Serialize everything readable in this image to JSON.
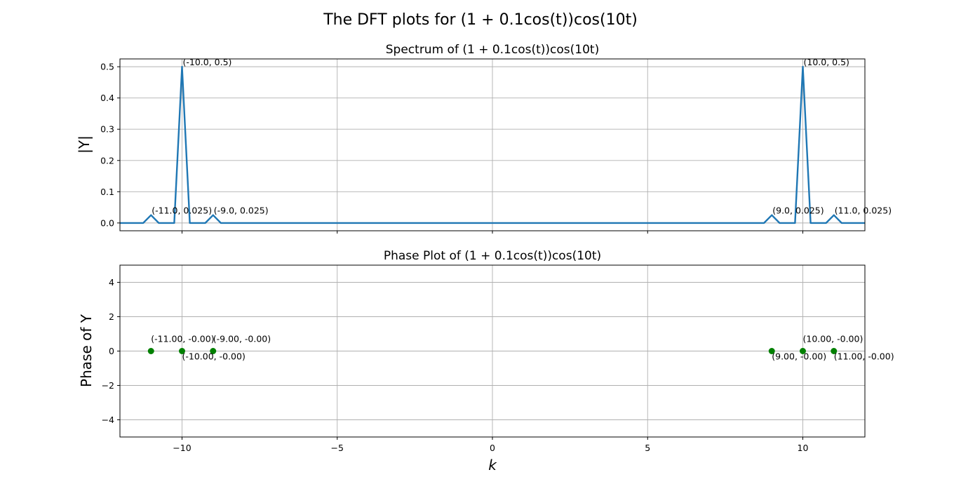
{
  "figure": {
    "suptitle": "The DFT plots for (1 + 0.1cos(t))cos(10t)"
  },
  "chart_data": [
    {
      "type": "line",
      "title": "Spectrum of (1 + 0.1cos(t))cos(10t)",
      "xlabel": "",
      "ylabel": "|Y|",
      "xlim": [
        -12,
        12
      ],
      "ylim": [
        -0.025,
        0.525
      ],
      "xticks": [
        -10,
        -5,
        0,
        5,
        10
      ],
      "xtick_labels_visible": false,
      "yticks": [
        0.0,
        0.1,
        0.2,
        0.3,
        0.4,
        0.5
      ],
      "ytick_labels": [
        "0.0",
        "0.1",
        "0.2",
        "0.3",
        "0.4",
        "0.5"
      ],
      "grid": true,
      "color": "#1f77b4",
      "series": [
        {
          "x": [
            -12,
            -11.25,
            -11,
            -10.75,
            -10.25,
            -10,
            -9.75,
            -9.25,
            -9,
            -8.75,
            8.75,
            9,
            9.25,
            9.75,
            10,
            10.25,
            10.75,
            11,
            11.25,
            12
          ],
          "y": [
            0,
            0,
            0.025,
            0,
            0,
            0.5,
            0,
            0,
            0.025,
            0,
            0,
            0.025,
            0,
            0,
            0.5,
            0,
            0,
            0.025,
            0,
            0
          ]
        }
      ],
      "annotations": [
        {
          "x": -10,
          "y": 0.5,
          "text": "(-10.0, 0.5)"
        },
        {
          "x": 10,
          "y": 0.5,
          "text": "(10.0, 0.5)"
        },
        {
          "x": -11,
          "y": 0.025,
          "text": "(-11.0, 0.025)"
        },
        {
          "x": -9,
          "y": 0.025,
          "text": "(-9.0, 0.025)"
        },
        {
          "x": 9,
          "y": 0.025,
          "text": "(9.0, 0.025)"
        },
        {
          "x": 11,
          "y": 0.025,
          "text": "(11.0, 0.025)"
        }
      ]
    },
    {
      "type": "scatter",
      "title": "Phase Plot of (1 + 0.1cos(t))cos(10t)",
      "xlabel": "k",
      "ylabel": "Phase of Y",
      "xlim": [
        -12,
        12
      ],
      "ylim": [
        -5,
        5
      ],
      "xticks": [
        -10,
        -5,
        0,
        5,
        10
      ],
      "xtick_labels": [
        "−10",
        "−5",
        "0",
        "5",
        "10"
      ],
      "yticks": [
        -4,
        -2,
        0,
        2,
        4
      ],
      "ytick_labels": [
        "−4",
        "−2",
        "0",
        "2",
        "4"
      ],
      "grid": true,
      "color": "#008000",
      "points": [
        {
          "x": -11,
          "y": 0
        },
        {
          "x": -10,
          "y": 0
        },
        {
          "x": -9,
          "y": 0
        },
        {
          "x": 9,
          "y": 0
        },
        {
          "x": 10,
          "y": 0
        },
        {
          "x": 11,
          "y": 0
        }
      ],
      "annotations": [
        {
          "x": -11,
          "y": 0,
          "text": "(-11.00, -0.00)",
          "position": "above"
        },
        {
          "x": -10,
          "y": 0,
          "text": "(-10.00, -0.00)",
          "position": "below"
        },
        {
          "x": -9,
          "y": 0,
          "text": "(-9.00, -0.00)",
          "position": "above"
        },
        {
          "x": 9,
          "y": 0,
          "text": "(9.00, -0.00)",
          "position": "below"
        },
        {
          "x": 10,
          "y": 0,
          "text": "(10.00, -0.00)",
          "position": "above"
        },
        {
          "x": 11,
          "y": 0,
          "text": "(11.00, -0.00)",
          "position": "below"
        }
      ]
    }
  ]
}
